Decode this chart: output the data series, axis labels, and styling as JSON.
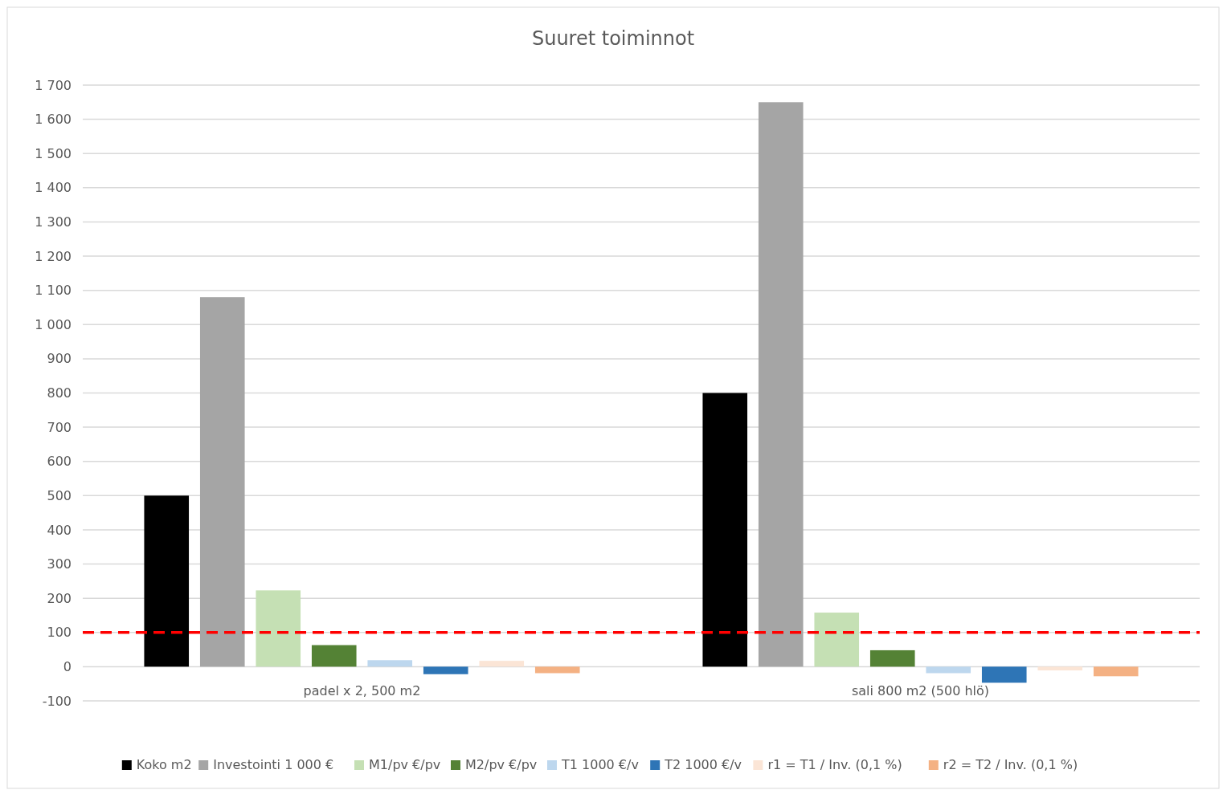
{
  "chart_data": {
    "type": "bar",
    "title": "Suuret toiminnot",
    "categories": [
      "padel x 2, 500 m2",
      "sali 800 m2 (500 hlö)"
    ],
    "series": [
      {
        "name": "Koko m2",
        "color": "#000000",
        "values": [
          500,
          800
        ]
      },
      {
        "name": "Investointi 1 000 €",
        "color": "#a5a5a5",
        "values": [
          1080,
          1650
        ]
      },
      {
        "name": "M1/pv €/pv",
        "color": "#c5e0b4",
        "values": [
          223,
          158
        ]
      },
      {
        "name": "M2/pv €/pv",
        "color": "#548235",
        "values": [
          63,
          48
        ]
      },
      {
        "name": "T1 1000 €/v",
        "color": "#bdd7ee",
        "values": [
          19,
          -19
        ]
      },
      {
        "name": "T2 1000 €/v",
        "color": "#2e75b6",
        "values": [
          -22,
          -47
        ]
      },
      {
        "name": "r1 = T1 / Inv. (0,1 %)",
        "color": "#fbe5d6",
        "values": [
          17,
          -11
        ]
      },
      {
        "name": "r2 = T2 / Inv. (0,1 %)",
        "color": "#f4b183",
        "values": [
          -19,
          -28
        ]
      }
    ],
    "ylim": [
      -100,
      1700
    ],
    "yticks": [
      {
        "value": -100,
        "label": "-100"
      },
      0,
      100,
      200,
      300,
      400,
      500,
      600,
      700,
      800,
      900,
      {
        "value": 1000,
        "label": "1 000"
      },
      {
        "value": 1100,
        "label": "1 100"
      },
      {
        "value": 1200,
        "label": "1 200"
      },
      {
        "value": 1300,
        "label": "1 300"
      },
      {
        "value": 1400,
        "label": "1 400"
      },
      {
        "value": 1500,
        "label": "1 500"
      },
      {
        "value": 1600,
        "label": "1 600"
      },
      {
        "value": 1700,
        "label": "1 700"
      }
    ],
    "grid": "y",
    "legend": "bottom",
    "ref_lines": [
      {
        "axis": "y",
        "value": 100,
        "color": "#ff0000",
        "line_style": "dashed"
      }
    ]
  }
}
